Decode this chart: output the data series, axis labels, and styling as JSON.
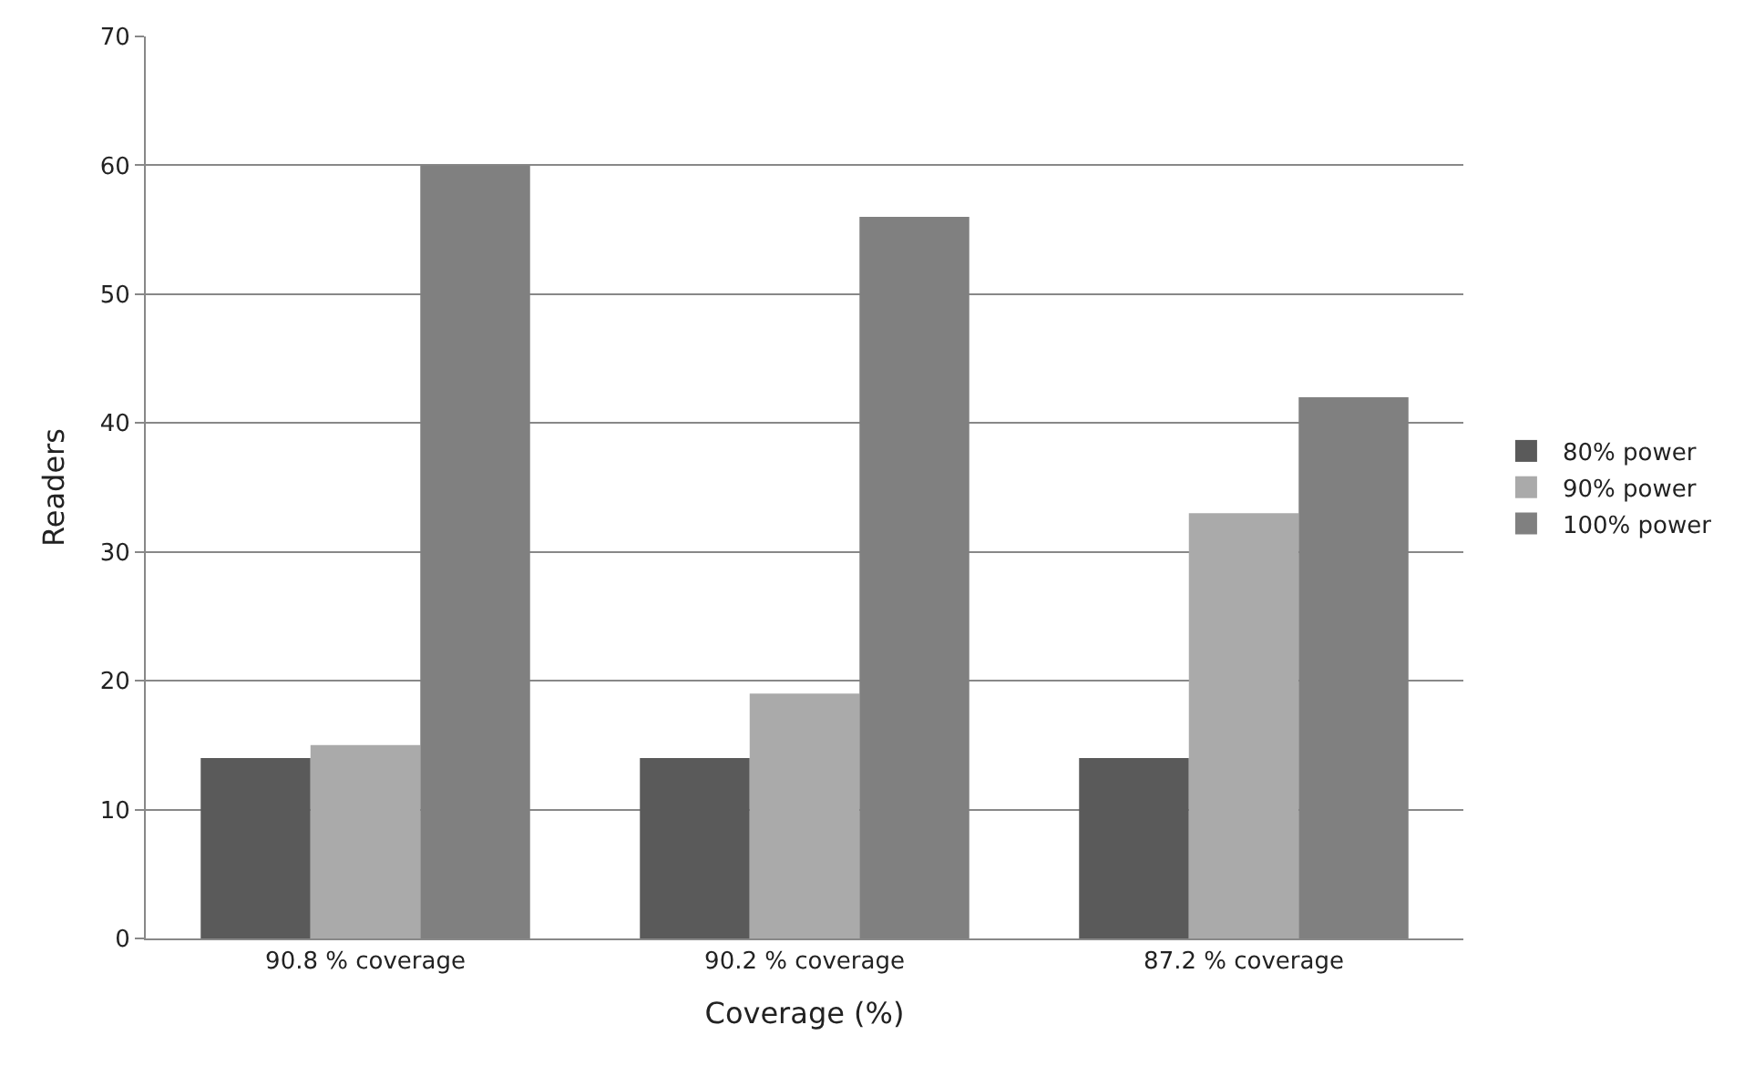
{
  "chart_data": {
    "type": "bar",
    "xlabel": "Coverage (%)",
    "ylabel": "Readers",
    "categories": [
      "90.8 % coverage",
      "90.2 % coverage",
      "87.2 % coverage"
    ],
    "series": [
      {
        "name": "80% power",
        "color": "#5a5a5a",
        "values": [
          14,
          14,
          14
        ]
      },
      {
        "name": "90% power",
        "color": "#aaaaaa",
        "values": [
          15,
          19,
          33
        ]
      },
      {
        "name": "100% power",
        "color": "#808080",
        "values": [
          60,
          56,
          42
        ]
      }
    ],
    "ylim": [
      0,
      70
    ],
    "yticks": [
      0,
      10,
      20,
      30,
      40,
      50,
      60,
      70
    ],
    "grid": "y",
    "legend": "right"
  }
}
